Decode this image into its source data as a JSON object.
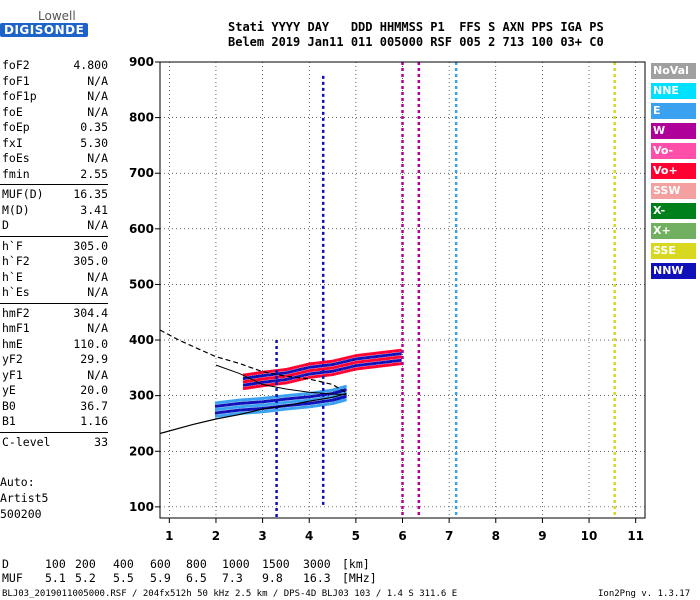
{
  "logo": {
    "top": "Lowell",
    "bottom": "DIGISONDE"
  },
  "header": {
    "line1": "Stati YYYY DAY   DDD HHMMSS P1  FFS S AXN PPS IGA PS",
    "line2": "Belem 2019 Jan11 011 005000 RSF 005 2 713 100 03+ C0"
  },
  "params": [
    {
      "name": "foF2",
      "value": "4.800"
    },
    {
      "name": "foF1",
      "value": "N/A"
    },
    {
      "name": "foF1p",
      "value": "N/A"
    },
    {
      "name": "foE",
      "value": "N/A"
    },
    {
      "name": "foEp",
      "value": "0.35"
    },
    {
      "name": "fxI",
      "value": "5.30"
    },
    {
      "name": "foEs",
      "value": "N/A"
    },
    {
      "name": "fmin",
      "value": "2.55"
    },
    {
      "name": "MUF(D)",
      "value": "16.35"
    },
    {
      "name": "M(D)",
      "value": "3.41"
    },
    {
      "name": "D",
      "value": "N/A"
    },
    {
      "name": "h`F",
      "value": "305.0"
    },
    {
      "name": "h`F2",
      "value": "305.0"
    },
    {
      "name": "h`E",
      "value": "N/A"
    },
    {
      "name": "h`Es",
      "value": "N/A"
    },
    {
      "name": "hmF2",
      "value": "304.4"
    },
    {
      "name": "hmF1",
      "value": "N/A"
    },
    {
      "name": "hmE",
      "value": "110.0"
    },
    {
      "name": "yF2",
      "value": "29.9"
    },
    {
      "name": "yF1",
      "value": "N/A"
    },
    {
      "name": "yE",
      "value": "20.0"
    },
    {
      "name": "B0",
      "value": "36.7"
    },
    {
      "name": "B1",
      "value": "1.16"
    },
    {
      "name": "C-level",
      "value": "33"
    }
  ],
  "auto": {
    "line1": "Auto:",
    "line2": "Artist5",
    "line3": "500200"
  },
  "muf_table": {
    "d_label": "D",
    "d_values": [
      "100",
      "200",
      "400",
      "600",
      "800",
      "1000",
      "1500",
      "3000"
    ],
    "d_unit": "[km]",
    "muf_label": "MUF",
    "muf_values": [
      "5.1",
      "5.2",
      "5.5",
      "5.9",
      "6.5",
      "7.3",
      "9.8",
      "16.3"
    ],
    "muf_unit": "[MHz]"
  },
  "footer": {
    "left": "BLJ03_2019011005000.RSF / 204fx512h 50 kHz 2.5 km / DPS-4D BLJ03 103 / 1.4 S 311.6 E",
    "right": "Ion2Png v. 1.3.17"
  },
  "legend": [
    {
      "label": "NoVal",
      "color": "#a0a0a0"
    },
    {
      "label": "NNE",
      "color": "#00e0ff"
    },
    {
      "label": "E",
      "color": "#3aa0f0"
    },
    {
      "label": "W",
      "color": "#b0009a"
    },
    {
      "label": "Vo-",
      "color": "#ff4fa8"
    },
    {
      "label": "Vo+",
      "color": "#ff0030"
    },
    {
      "label": "SSW",
      "color": "#f4a0a0"
    },
    {
      "label": "X-",
      "color": "#00801a"
    },
    {
      "label": "X+",
      "color": "#70b060"
    },
    {
      "label": "SSE",
      "color": "#d8d820"
    },
    {
      "label": "NNW",
      "color": "#1010b8"
    }
  ],
  "chart_data": {
    "type": "scatter",
    "title": "",
    "xlabel": "",
    "ylabel": "",
    "xlim": [
      0.8,
      11.2
    ],
    "ylim": [
      80,
      900
    ],
    "x_ticks": [
      1,
      2,
      3,
      4,
      5,
      6,
      7,
      8,
      9,
      10,
      11
    ],
    "y_ticks": [
      100,
      200,
      300,
      400,
      500,
      600,
      700,
      800,
      900
    ],
    "grid": true,
    "bands": [
      {
        "name": "F-trace low",
        "x": [
          2.0,
          2.5,
          3.0,
          3.5,
          4.0,
          4.5,
          4.8
        ],
        "y": [
          275,
          280,
          283,
          288,
          292,
          298,
          305
        ],
        "color": "#3aa0f0"
      },
      {
        "name": "F-trace high",
        "x": [
          2.6,
          3.0,
          3.5,
          4.0,
          4.5,
          5.0,
          5.5,
          6.0
        ],
        "y": [
          325,
          330,
          335,
          345,
          350,
          360,
          365,
          370
        ],
        "color": "#ff0030"
      }
    ],
    "profile_solid": {
      "x": [
        0.8,
        1.5,
        2.0,
        2.5,
        3.0,
        3.5,
        4.0,
        4.5,
        4.8
      ],
      "y": [
        232,
        248,
        258,
        266,
        276,
        282,
        290,
        297,
        304
      ]
    },
    "profile_dashed": {
      "x": [
        0.8,
        1.2,
        1.6,
        2.0,
        2.5,
        3.0,
        3.5,
        4.0,
        4.5,
        4.8
      ],
      "y": [
        418,
        400,
        385,
        370,
        358,
        343,
        335,
        330,
        320,
        305
      ]
    },
    "profile_upper": {
      "x": [
        2.0,
        2.5,
        3.0,
        3.5,
        4.0,
        4.5,
        4.8
      ],
      "y": [
        355,
        340,
        320,
        312,
        306,
        303,
        302
      ]
    },
    "vertical_lines": [
      {
        "x": 3.3,
        "y": [
          80,
          400
        ],
        "color": "#1010b8"
      },
      {
        "x": 4.3,
        "y": [
          100,
          875
        ],
        "color": "#1010b8"
      },
      {
        "x": 6.0,
        "y": [
          80,
          900
        ],
        "color": "#b0009a"
      },
      {
        "x": 6.35,
        "y": [
          80,
          900
        ],
        "color": "#b0009a"
      },
      {
        "x": 7.15,
        "y": [
          80,
          900
        ],
        "color": "#3aa0f0"
      },
      {
        "x": 10.55,
        "y": [
          80,
          900
        ],
        "color": "#d8d820"
      }
    ]
  }
}
